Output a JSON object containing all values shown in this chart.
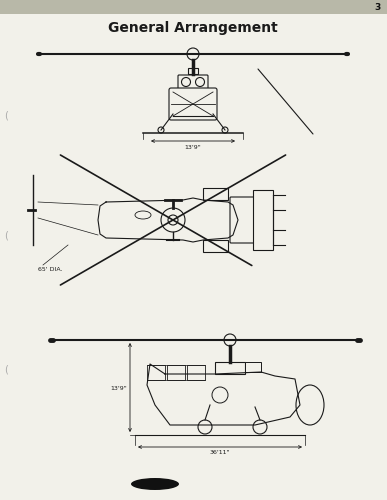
{
  "title": "General Arrangement",
  "page_number": "3",
  "header_bg": "#b8b8a8",
  "paper_color": "#f2f1ea",
  "line_color": "#1a1a1a",
  "dim_label_top": "13'9\"",
  "dim_label_mid": "65' DIA.",
  "dim_label_bot_h": "13'9\"",
  "dim_label_bot_w": "36'11\"",
  "black_blob_color": "#111111"
}
